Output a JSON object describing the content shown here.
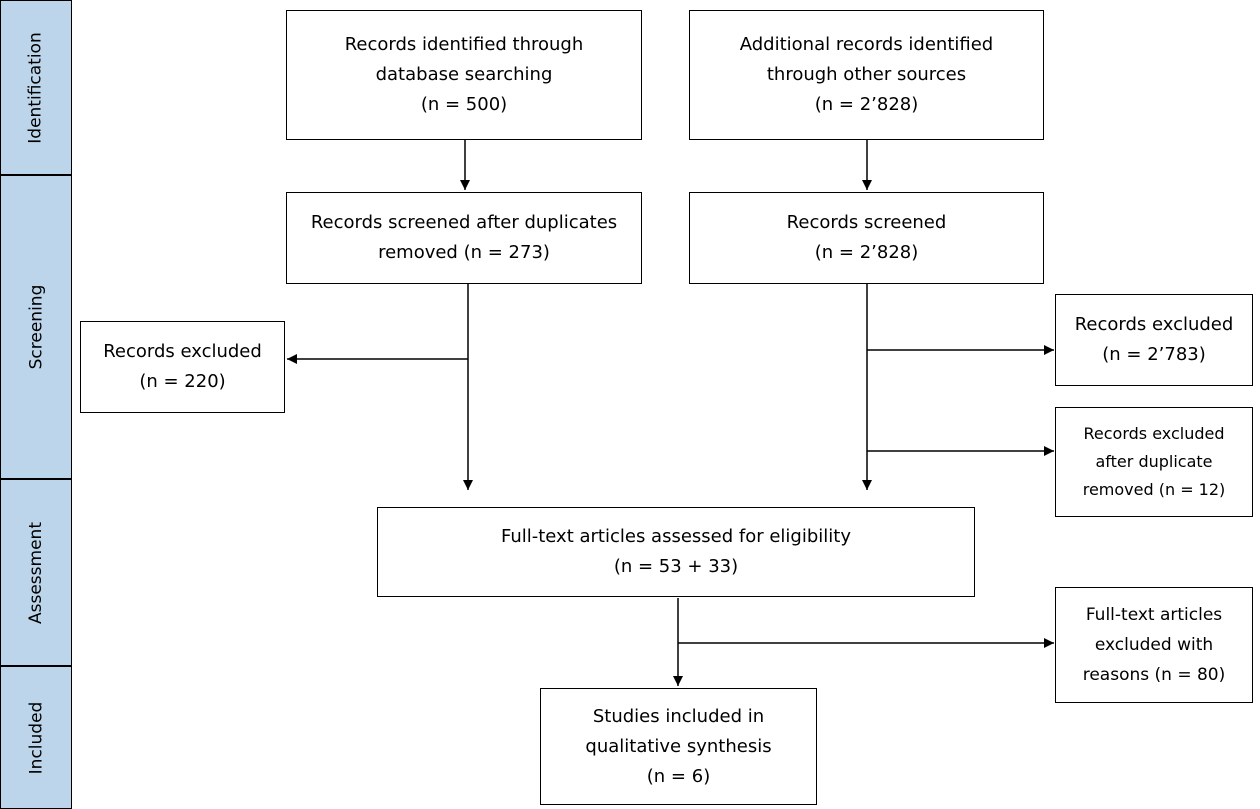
{
  "phases": {
    "identification": "Identification",
    "screening": "Screening",
    "assessment": "Assessment",
    "included": "Included"
  },
  "boxes": {
    "db_search": {
      "lines": [
        "Records identified through",
        "database searching",
        "(n = 500)"
      ]
    },
    "other_sources": {
      "lines": [
        "Additional records identified",
        "through other sources",
        "(n = 2’828)"
      ]
    },
    "screened_after_dup": {
      "lines": [
        "Records screened after duplicates",
        "removed (n = 273)"
      ]
    },
    "screened": {
      "lines": [
        "Records screened",
        "(n = 2’828)"
      ]
    },
    "excluded_left": {
      "lines": [
        "Records excluded",
        "(n = 220)"
      ]
    },
    "excluded_right": {
      "lines": [
        "Records excluded",
        "(n = 2’783)"
      ]
    },
    "excluded_dup": {
      "lines": [
        "Records excluded",
        "after duplicate",
        "removed (n = 12)"
      ]
    },
    "fulltext_assessed": {
      "lines": [
        "Full-text articles assessed for eligibility",
        "(n = 53 + 33)"
      ]
    },
    "fulltext_excluded": {
      "lines": [
        "Full-text articles",
        "excluded with",
        "reasons (n = 80)"
      ]
    },
    "included": {
      "lines": [
        "Studies included in",
        "qualitative synthesis",
        "(n = 6)"
      ]
    }
  }
}
